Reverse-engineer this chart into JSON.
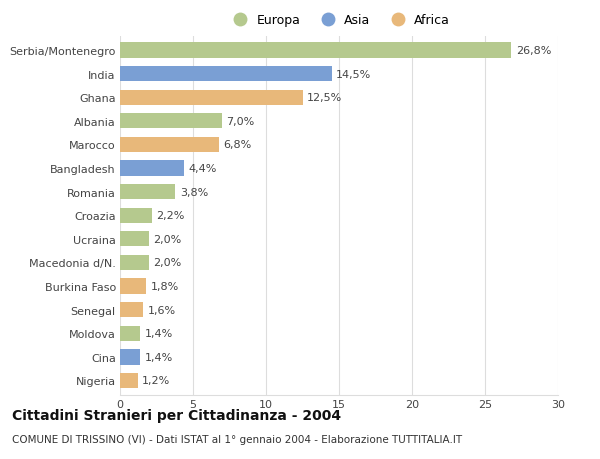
{
  "categories": [
    "Serbia/Montenegro",
    "India",
    "Ghana",
    "Albania",
    "Marocco",
    "Bangladesh",
    "Romania",
    "Croazia",
    "Ucraina",
    "Macedonia d/N.",
    "Burkina Faso",
    "Senegal",
    "Moldova",
    "Cina",
    "Nigeria"
  ],
  "values": [
    26.8,
    14.5,
    12.5,
    7.0,
    6.8,
    4.4,
    3.8,
    2.2,
    2.0,
    2.0,
    1.8,
    1.6,
    1.4,
    1.4,
    1.2
  ],
  "labels": [
    "26,8%",
    "14,5%",
    "12,5%",
    "7,0%",
    "6,8%",
    "4,4%",
    "3,8%",
    "2,2%",
    "2,0%",
    "2,0%",
    "1,8%",
    "1,6%",
    "1,4%",
    "1,4%",
    "1,2%"
  ],
  "continents": [
    "Europa",
    "Asia",
    "Africa",
    "Europa",
    "Africa",
    "Asia",
    "Europa",
    "Europa",
    "Europa",
    "Europa",
    "Africa",
    "Africa",
    "Europa",
    "Asia",
    "Africa"
  ],
  "colors": {
    "Europa": "#b5c98e",
    "Asia": "#7a9fd4",
    "Africa": "#e8b87a"
  },
  "xlim": [
    0,
    30
  ],
  "xticks": [
    0,
    5,
    10,
    15,
    20,
    25,
    30
  ],
  "title": "Cittadini Stranieri per Cittadinanza - 2004",
  "subtitle": "COMUNE DI TRISSINO (VI) - Dati ISTAT al 1° gennaio 2004 - Elaborazione TUTTITALIA.IT",
  "background_color": "#ffffff",
  "grid_color": "#dddddd",
  "bar_height": 0.65,
  "label_fontsize": 8,
  "tick_fontsize": 8,
  "title_fontsize": 10,
  "subtitle_fontsize": 7.5,
  "legend_fontsize": 9
}
